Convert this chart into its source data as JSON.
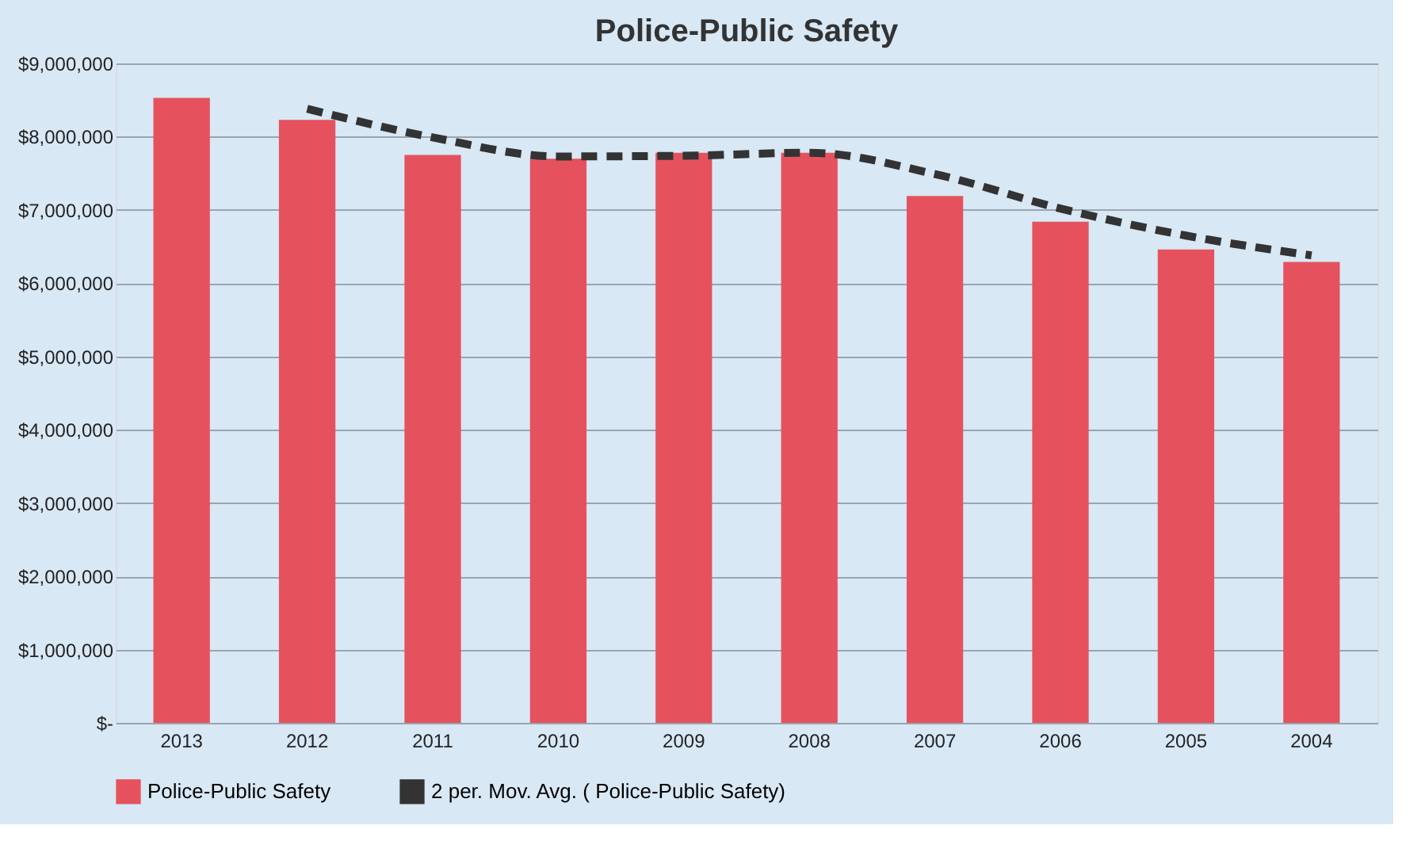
{
  "chart_data": {
    "type": "bar",
    "title": "Police-Public Safety",
    "categories": [
      "2013",
      "2012",
      "2011",
      "2010",
      "2009",
      "2008",
      "2007",
      "2006",
      "2005",
      "2004"
    ],
    "series": [
      {
        "name": "Police-Public Safety",
        "color": "#e5525e",
        "values": [
          8530000,
          8230000,
          7750000,
          7700000,
          7780000,
          7780000,
          7190000,
          6840000,
          6460000,
          6290000
        ]
      },
      {
        "name": "2 per. Mov. Avg. ( Police-Public Safety)",
        "type": "line",
        "color": "#333333",
        "line_style": "dashed",
        "values": [
          null,
          8380000,
          7990000,
          7730000,
          7740000,
          7780000,
          7490000,
          7020000,
          6650000,
          6380000
        ]
      }
    ],
    "ylim": [
      0,
      9000000
    ],
    "yticks": [
      {
        "value": 0,
        "label": "$-"
      },
      {
        "value": 1000000,
        "label": "$1,000,000"
      },
      {
        "value": 2000000,
        "label": "$2,000,000"
      },
      {
        "value": 3000000,
        "label": "$3,000,000"
      },
      {
        "value": 4000000,
        "label": "$4,000,000"
      },
      {
        "value": 5000000,
        "label": "$5,000,000"
      },
      {
        "value": 6000000,
        "label": "$6,000,000"
      },
      {
        "value": 7000000,
        "label": "$7,000,000"
      },
      {
        "value": 8000000,
        "label": "$8,000,000"
      },
      {
        "value": 9000000,
        "label": "$9,000,000"
      }
    ],
    "grid": "y",
    "legend": "bottom"
  }
}
